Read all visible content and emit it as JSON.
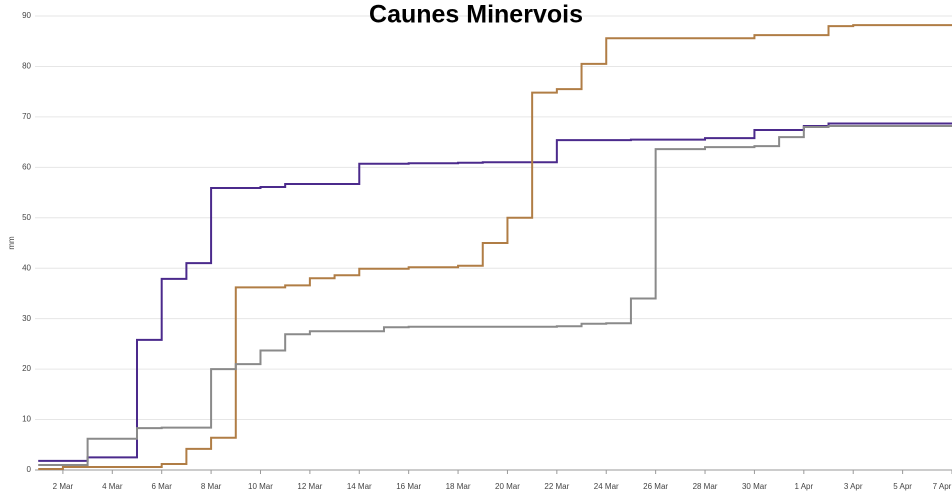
{
  "chart_data": {
    "type": "step",
    "title": "Caunes Minervois",
    "y_label": "mm",
    "x": [
      1,
      2,
      3,
      4,
      5,
      6,
      7,
      8,
      9,
      10,
      11,
      12,
      13,
      14,
      15,
      16,
      17,
      18,
      19,
      20,
      21,
      22,
      23,
      24,
      25,
      26,
      27,
      28,
      29,
      30,
      31,
      32,
      33,
      34,
      35,
      36,
      37
    ],
    "series": [
      {
        "color": "#4b2a8c",
        "values": [
          1.8,
          1.8,
          2.5,
          2.5,
          25.8,
          37.9,
          41,
          55.9,
          55.9,
          56.1,
          56.7,
          56.7,
          56.7,
          60.7,
          60.7,
          60.8,
          60.8,
          60.9,
          61,
          61,
          61,
          65.4,
          65.4,
          65.4,
          65.5,
          65.5,
          65.5,
          65.8,
          65.8,
          67.4,
          67.4,
          68.2,
          68.7,
          68.7,
          68.7,
          68.7,
          68.7
        ]
      },
      {
        "color": "#b07d45",
        "values": [
          0.2,
          0.6,
          0.6,
          0.6,
          0.6,
          1.2,
          4.2,
          6.4,
          36.2,
          36.2,
          36.6,
          38,
          38.6,
          39.9,
          39.9,
          40.2,
          40.2,
          40.5,
          45,
          50,
          74.8,
          75.5,
          80.5,
          85.6,
          85.6,
          85.6,
          85.6,
          85.6,
          85.6,
          86.2,
          86.2,
          86.2,
          88,
          88.2,
          88.2,
          88.2,
          88.2
        ]
      },
      {
        "color": "#8a8a8a",
        "values": [
          1,
          1,
          6.2,
          6.2,
          8.3,
          8.4,
          8.4,
          20,
          21,
          23.7,
          26.9,
          27.5,
          27.5,
          27.5,
          28.3,
          28.4,
          28.4,
          28.4,
          28.4,
          28.4,
          28.4,
          28.5,
          29,
          29.1,
          34,
          63.6,
          63.6,
          64,
          64,
          64.2,
          66,
          68,
          68.2,
          68.2,
          68.2,
          68.2,
          68.2
        ]
      }
    ],
    "xlim": [
      0.87,
      38
    ],
    "xticks": [
      {
        "value": 2,
        "label": "2 Mar"
      },
      {
        "value": 4,
        "label": "4 Mar"
      },
      {
        "value": 6,
        "label": "6 Mar"
      },
      {
        "value": 8,
        "label": "8 Mar"
      },
      {
        "value": 10,
        "label": "10 Mar"
      },
      {
        "value": 12,
        "label": "12 Mar"
      },
      {
        "value": 14,
        "label": "14 Mar"
      },
      {
        "value": 16,
        "label": "16 Mar"
      },
      {
        "value": 18,
        "label": "18 Mar"
      },
      {
        "value": 20,
        "label": "20 Mar"
      },
      {
        "value": 22,
        "label": "22 Mar"
      },
      {
        "value": 24,
        "label": "24 Mar"
      },
      {
        "value": 26,
        "label": "26 Mar"
      },
      {
        "value": 28,
        "label": "28 Mar"
      },
      {
        "value": 30,
        "label": "30 Mar"
      },
      {
        "value": 32,
        "label": "1 Apr"
      },
      {
        "value": 34,
        "label": "3 Apr"
      },
      {
        "value": 36,
        "label": "5 Apr"
      },
      {
        "value": 38,
        "label": "7 Apr"
      }
    ],
    "ylim": [
      0,
      90
    ],
    "yticks": [
      0,
      10,
      20,
      30,
      40,
      50,
      60,
      70,
      80,
      90
    ],
    "grid": true
  }
}
